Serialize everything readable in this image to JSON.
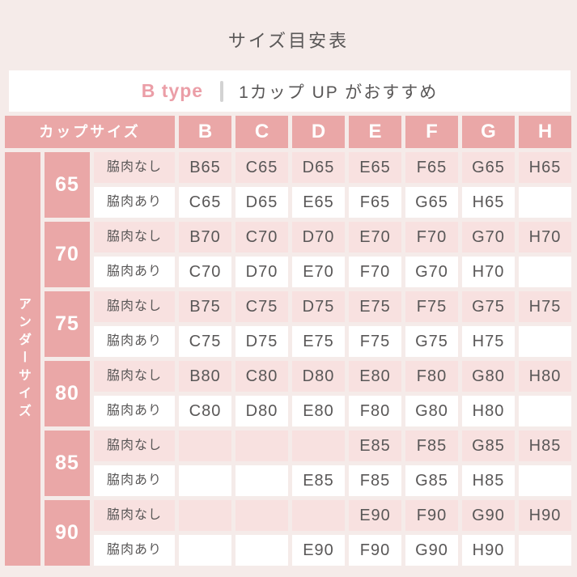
{
  "page": {
    "title": "サイズ目安表"
  },
  "banner": {
    "type_label": "B type",
    "recommendation": "1カップ UP がおすすめ"
  },
  "table": {
    "corner_header": "カップサイズ",
    "side_label": "アンダーサイズ",
    "cup_columns": [
      "B",
      "C",
      "D",
      "E",
      "F",
      "G",
      "H"
    ],
    "row_labels": {
      "no_fat": "脇肉なし",
      "with_fat": "脇肉あり"
    },
    "bands": [
      {
        "band": "65",
        "no_fat": [
          "B65",
          "C65",
          "D65",
          "E65",
          "F65",
          "G65",
          "H65"
        ],
        "with_fat": [
          "C65",
          "D65",
          "E65",
          "F65",
          "G65",
          "H65",
          ""
        ]
      },
      {
        "band": "70",
        "no_fat": [
          "B70",
          "C70",
          "D70",
          "E70",
          "F70",
          "G70",
          "H70"
        ],
        "with_fat": [
          "C70",
          "D70",
          "E70",
          "F70",
          "G70",
          "H70",
          ""
        ]
      },
      {
        "band": "75",
        "no_fat": [
          "B75",
          "C75",
          "D75",
          "E75",
          "F75",
          "G75",
          "H75"
        ],
        "with_fat": [
          "C75",
          "D75",
          "E75",
          "F75",
          "G75",
          "H75",
          ""
        ]
      },
      {
        "band": "80",
        "no_fat": [
          "B80",
          "C80",
          "D80",
          "E80",
          "F80",
          "G80",
          "H80"
        ],
        "with_fat": [
          "C80",
          "D80",
          "E80",
          "F80",
          "G80",
          "H80",
          ""
        ]
      },
      {
        "band": "85",
        "no_fat": [
          "",
          "",
          "",
          "E85",
          "F85",
          "G85",
          "H85"
        ],
        "with_fat": [
          "",
          "",
          "E85",
          "F85",
          "G85",
          "H85",
          ""
        ]
      },
      {
        "band": "90",
        "no_fat": [
          "",
          "",
          "",
          "E90",
          "F90",
          "G90",
          "H90"
        ],
        "with_fat": [
          "",
          "",
          "E90",
          "F90",
          "G90",
          "H90",
          ""
        ]
      }
    ]
  },
  "colors": {
    "page_bg": "#f5ebe9",
    "accent_pink": "#eaa7a7",
    "cell_pink": "#f8e1e0",
    "white": "#ffffff",
    "text_gray": "#595757",
    "type_pink": "#eb9ea7",
    "divider_gray": "#d3d3d3"
  }
}
